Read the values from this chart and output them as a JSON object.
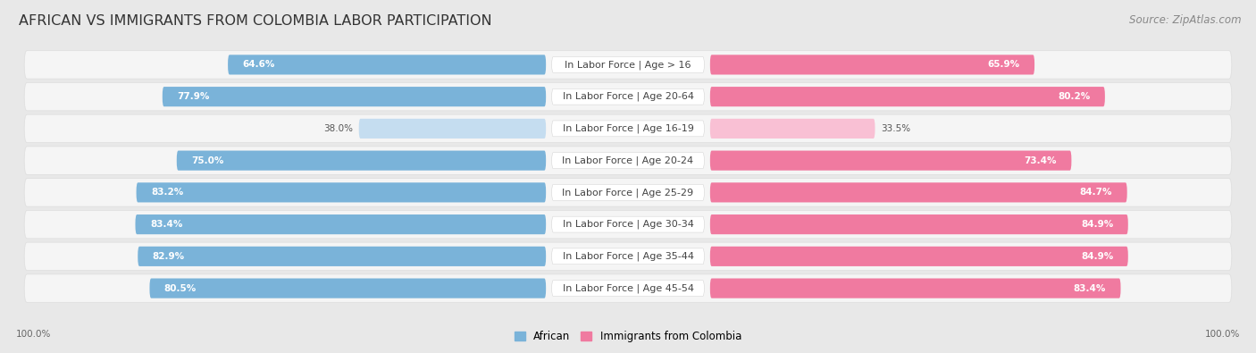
{
  "title": "AFRICAN VS IMMIGRANTS FROM COLOMBIA LABOR PARTICIPATION",
  "source": "Source: ZipAtlas.com",
  "categories": [
    "In Labor Force | Age > 16",
    "In Labor Force | Age 20-64",
    "In Labor Force | Age 16-19",
    "In Labor Force | Age 20-24",
    "In Labor Force | Age 25-29",
    "In Labor Force | Age 30-34",
    "In Labor Force | Age 35-44",
    "In Labor Force | Age 45-54"
  ],
  "african_values": [
    64.6,
    77.9,
    38.0,
    75.0,
    83.2,
    83.4,
    82.9,
    80.5
  ],
  "colombia_values": [
    65.9,
    80.2,
    33.5,
    73.4,
    84.7,
    84.9,
    84.9,
    83.4
  ],
  "african_color": "#7ab3d9",
  "colombia_color": "#f07aa0",
  "african_color_light": "#c5ddf0",
  "colombia_color_light": "#f9c0d4",
  "row_bg_color": "#f5f5f5",
  "page_bg_color": "#e8e8e8",
  "title_fontsize": 11.5,
  "source_fontsize": 8.5,
  "label_fontsize": 8,
  "value_fontsize": 7.5,
  "legend_fontsize": 8.5,
  "axis_label_fontsize": 7.5,
  "max_value": 100.0
}
